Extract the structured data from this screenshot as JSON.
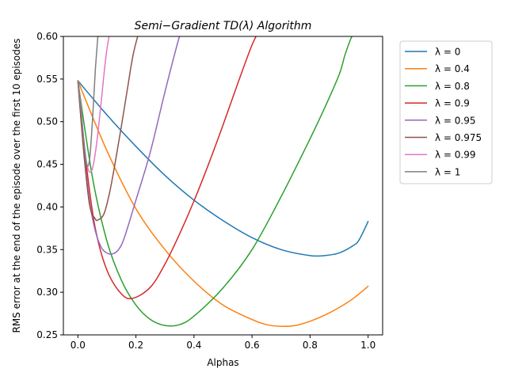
{
  "chart_data": {
    "type": "line",
    "title": "Semi−Gradient TD(λ) Algorithm",
    "xlabel": "Alphas",
    "ylabel": "RMS error at the end of the episode over the first 10 episodes",
    "xlim": [
      -0.05,
      1.05
    ],
    "ylim": [
      0.25,
      0.6
    ],
    "xticks": [
      0.0,
      0.2,
      0.4,
      0.6,
      0.8,
      1.0
    ],
    "xtick_labels": [
      "0.0",
      "0.2",
      "0.4",
      "0.6",
      "0.8",
      "1.0"
    ],
    "yticks": [
      0.25,
      0.3,
      0.35,
      0.4,
      0.45,
      0.5,
      0.55,
      0.6
    ],
    "ytick_labels": [
      "0.25",
      "0.30",
      "0.35",
      "0.40",
      "0.45",
      "0.50",
      "0.55",
      "0.60"
    ],
    "grid": false,
    "legend_position": "outside-right-top",
    "series": [
      {
        "name": "λ = 0",
        "color": "#1f77b4",
        "x": [
          0.0,
          0.1,
          0.2,
          0.3,
          0.4,
          0.5,
          0.6,
          0.7,
          0.8,
          0.85,
          0.9,
          0.95,
          0.97,
          1.0
        ],
        "y": [
          0.548,
          0.508,
          0.471,
          0.437,
          0.408,
          0.384,
          0.364,
          0.35,
          0.343,
          0.343,
          0.346,
          0.355,
          0.362,
          0.383
        ]
      },
      {
        "name": "λ = 0.4",
        "color": "#ff7f0e",
        "x": [
          0.0,
          0.1,
          0.2,
          0.3,
          0.4,
          0.5,
          0.6,
          0.65,
          0.7,
          0.75,
          0.8,
          0.85,
          0.9,
          0.95,
          1.0
        ],
        "y": [
          0.548,
          0.466,
          0.398,
          0.35,
          0.313,
          0.285,
          0.268,
          0.262,
          0.26,
          0.261,
          0.266,
          0.273,
          0.282,
          0.293,
          0.307
        ]
      },
      {
        "name": "λ = 0.8",
        "color": "#2ca02c",
        "x": [
          0.0,
          0.05,
          0.1,
          0.15,
          0.2,
          0.25,
          0.3,
          0.35,
          0.4,
          0.5,
          0.6,
          0.7,
          0.8,
          0.85,
          0.9,
          0.92,
          0.94,
          0.95
        ],
        "y": [
          0.548,
          0.435,
          0.36,
          0.314,
          0.285,
          0.268,
          0.261,
          0.262,
          0.272,
          0.305,
          0.35,
          0.412,
          0.48,
          0.516,
          0.555,
          0.578,
          0.597,
          0.603
        ]
      },
      {
        "name": "λ = 0.9",
        "color": "#d62728",
        "x": [
          0.0,
          0.03,
          0.06,
          0.1,
          0.15,
          0.19,
          0.25,
          0.3,
          0.35,
          0.4,
          0.45,
          0.5,
          0.55,
          0.6,
          0.63
        ],
        "y": [
          0.548,
          0.447,
          0.375,
          0.326,
          0.298,
          0.293,
          0.306,
          0.333,
          0.368,
          0.407,
          0.45,
          0.496,
          0.544,
          0.59,
          0.61
        ]
      },
      {
        "name": "λ = 0.95",
        "color": "#9467bd",
        "x": [
          0.0,
          0.02,
          0.04,
          0.06,
          0.08,
          0.1,
          0.12,
          0.14,
          0.16,
          0.2,
          0.25,
          0.3,
          0.35,
          0.37
        ],
        "y": [
          0.548,
          0.468,
          0.407,
          0.372,
          0.353,
          0.346,
          0.345,
          0.35,
          0.364,
          0.408,
          0.465,
          0.535,
          0.6,
          0.615
        ]
      },
      {
        "name": "λ = 0.975",
        "color": "#8c564b",
        "x": [
          0.0,
          0.02,
          0.04,
          0.06,
          0.07,
          0.09,
          0.11,
          0.13,
          0.15,
          0.17,
          0.19,
          0.21
        ],
        "y": [
          0.548,
          0.465,
          0.403,
          0.386,
          0.385,
          0.392,
          0.418,
          0.455,
          0.495,
          0.537,
          0.578,
          0.605
        ]
      },
      {
        "name": "λ = 0.99",
        "color": "#e377c2",
        "x": [
          0.0,
          0.01,
          0.02,
          0.03,
          0.04,
          0.05,
          0.06,
          0.07,
          0.08,
          0.09,
          0.1,
          0.11
        ],
        "y": [
          0.548,
          0.52,
          0.48,
          0.452,
          0.441,
          0.445,
          0.463,
          0.49,
          0.522,
          0.556,
          0.585,
          0.605
        ]
      },
      {
        "name": "λ = 1",
        "color": "#7f7f7f",
        "x": [
          0.0,
          0.01,
          0.02,
          0.03,
          0.04,
          0.05,
          0.06,
          0.07
        ],
        "y": [
          0.548,
          0.515,
          0.478,
          0.45,
          0.455,
          0.5,
          0.56,
          0.605
        ]
      }
    ]
  }
}
